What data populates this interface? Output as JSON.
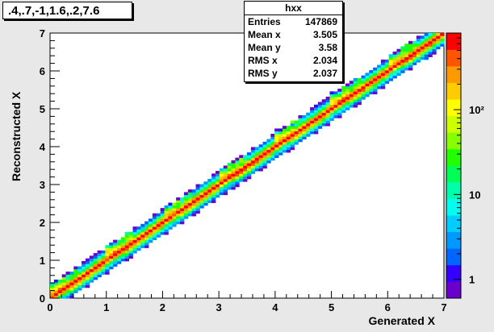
{
  "chart_data": {
    "type": "heatmap",
    "title": ".4,.7,-1,1.6,.2,7.6",
    "xlabel": "Generated X",
    "ylabel": "Reconstructed X",
    "xlim": [
      0,
      7
    ],
    "ylim": [
      0,
      7
    ],
    "x_ticks": [
      "0",
      "1",
      "2",
      "3",
      "4",
      "5",
      "6",
      "7"
    ],
    "y_ticks": [
      "0",
      "1",
      "2",
      "3",
      "4",
      "5",
      "6",
      "7"
    ],
    "z_scale": "log",
    "z_ticks": [
      "1",
      "10",
      "10²"
    ],
    "z_tick_values": [
      1,
      10,
      100
    ],
    "z_range": [
      0.6,
      800
    ],
    "stats": {
      "name": "hxx",
      "entries": [
        {
          "label": "Entries",
          "value": "147869"
        },
        {
          "label": "Mean x",
          "value": "3.505"
        },
        {
          "label": "Mean y",
          "value": "3.58"
        },
        {
          "label": "RMS x",
          "value": "2.034"
        },
        {
          "label": "RMS y",
          "value": "2.037"
        }
      ]
    },
    "palette": [
      "#6a00cc",
      "#3300ff",
      "#0066ff",
      "#0099ff",
      "#00ccff",
      "#00ffee",
      "#00ffaa",
      "#00ff55",
      "#22ff00",
      "#88ff00",
      "#ccff00",
      "#ffff00",
      "#ffcc00",
      "#ff9900",
      "#ff5500",
      "#ff0000"
    ]
  }
}
